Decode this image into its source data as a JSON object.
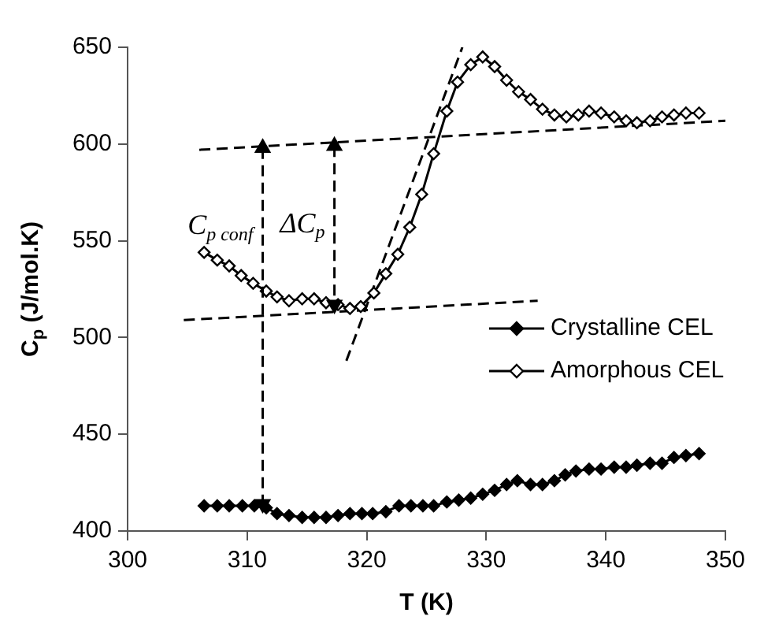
{
  "chart_data": {
    "type": "line",
    "xlabel": "T (K)",
    "ylabel": "C$_{p}$ (J/mol.K)",
    "xlim": [
      300,
      350
    ],
    "xticks": [
      300,
      310,
      320,
      330,
      340,
      350
    ],
    "ylim": [
      400,
      650
    ],
    "yticks": [
      400,
      450,
      500,
      550,
      600,
      650
    ],
    "grid": false,
    "legend": "right",
    "annotations": [
      "C$_{p conf}$",
      "ΔC$_{p}$"
    ],
    "series": [
      {
        "name": "Crystalline CEL",
        "color": "#000000",
        "marker": "diamond",
        "line_style": "solid",
        "x": [
          306.4,
          307.5,
          308.5,
          309.6,
          310.6,
          311.6,
          312.5,
          313.5,
          314.6,
          315.6,
          316.6,
          317.6,
          318.6,
          319.6,
          320.5,
          321.6,
          322.7,
          323.7,
          324.7,
          325.6,
          326.7,
          327.7,
          328.7,
          329.7,
          330.7,
          331.7,
          332.6,
          333.7,
          334.7,
          335.7,
          336.6,
          337.5,
          338.6,
          339.6,
          340.7,
          341.7,
          342.6,
          343.7,
          344.7,
          345.7,
          346.7,
          347.8
        ],
        "values": [
          413,
          413,
          413,
          413,
          413,
          412,
          409,
          408,
          407,
          407,
          407,
          408,
          409,
          409,
          409,
          410,
          413,
          413,
          413,
          413,
          415,
          416,
          417,
          419,
          421,
          424,
          426,
          424,
          424,
          426,
          429,
          431,
          432,
          432,
          433,
          433,
          434,
          435,
          435,
          438,
          439,
          440
        ]
      },
      {
        "name": "Amorphous CEL",
        "color": "#000000",
        "marker": "diamond",
        "line_style": "solid",
        "x": [
          306.4,
          307.5,
          308.5,
          309.5,
          310.5,
          311.6,
          312.5,
          313.5,
          314.6,
          315.6,
          316.6,
          317.6,
          318.6,
          319.5,
          320.6,
          321.6,
          322.6,
          323.6,
          324.6,
          325.6,
          326.7,
          327.6,
          328.7,
          329.7,
          330.7,
          331.7,
          332.7,
          333.7,
          334.7,
          335.7,
          336.7,
          337.7,
          338.6,
          339.6,
          340.7,
          341.7,
          342.6,
          343.7,
          344.7,
          345.7,
          346.7,
          347.8
        ],
        "values": [
          544,
          540,
          537,
          532,
          528,
          524,
          521,
          519,
          520,
          520,
          518,
          517,
          515,
          516,
          523,
          533,
          543,
          557,
          574,
          595,
          617,
          632,
          641,
          645,
          640,
          633,
          627,
          623,
          618,
          615,
          614,
          615,
          617,
          616,
          614,
          612,
          611,
          612,
          614,
          615,
          616,
          616
        ]
      },
      {
        "color": "#000000",
        "marker": "none",
        "line_style": "dashed",
        "x": [
          306,
          350
        ],
        "values": [
          597,
          612
        ]
      },
      {
        "color": "#000000",
        "marker": "none",
        "line_style": "dashed",
        "x": [
          304.7,
          334.3
        ],
        "values": [
          509,
          519
        ]
      },
      {
        "color": "#000000",
        "marker": "none",
        "line_style": "dashed",
        "x": [
          318.3,
          328
        ],
        "values": [
          488,
          650
        ]
      },
      {
        "color": "#000000",
        "marker": "triangle",
        "line_style": "dashed",
        "x": [
          311.3,
          311.3
        ],
        "values": [
          598,
          414
        ]
      },
      {
        "color": "#000000",
        "marker": "triangle",
        "line_style": "dashed",
        "x": [
          317.3,
          317.3
        ],
        "values": [
          599,
          517
        ]
      }
    ]
  }
}
